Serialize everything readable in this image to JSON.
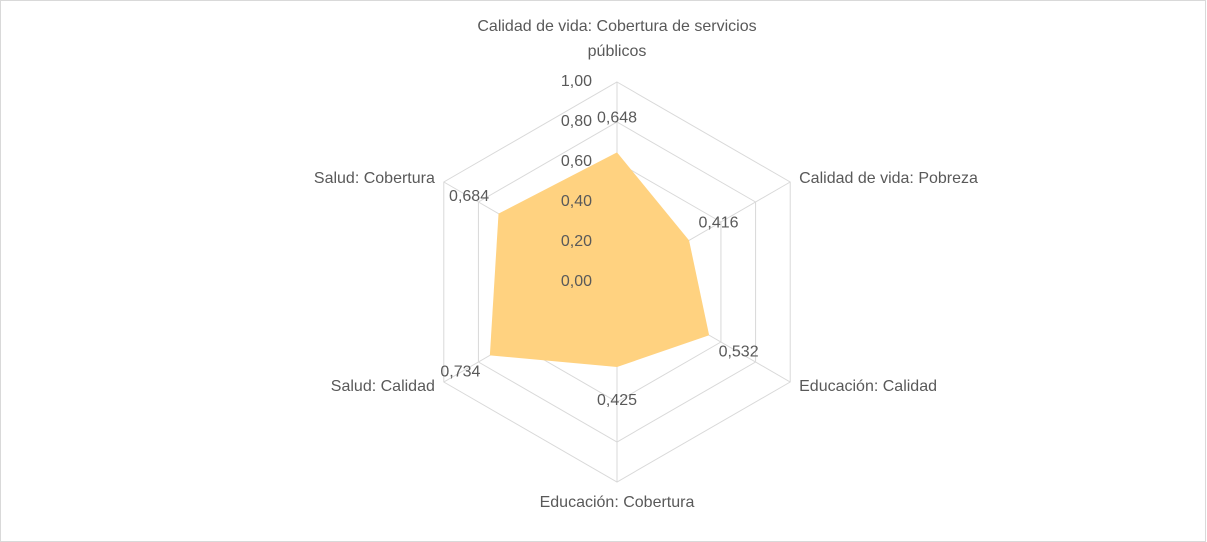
{
  "chart_data": {
    "type": "radar",
    "categories": [
      "Calidad de vida: Cobertura de servicios públicos",
      "Calidad de vida: Pobreza",
      "Educación: Calidad",
      "Educación: Cobertura",
      "Salud: Calidad",
      "Salud: Cobertura"
    ],
    "values": [
      0.648,
      0.416,
      0.532,
      0.425,
      0.734,
      0.684
    ],
    "value_labels": [
      "0,648",
      "0,416",
      "0,532",
      "0,425",
      "0,734",
      "0,684"
    ],
    "color": "#ffd280",
    "ylim": [
      0,
      1
    ],
    "yticks": [
      {
        "value": 0,
        "label": "0,00"
      },
      {
        "value": 0.2,
        "label": "0,20"
      },
      {
        "value": 0.4,
        "label": "0,40"
      },
      {
        "value": 0.6,
        "label": "0,60"
      },
      {
        "value": 0.8,
        "label": "0,80"
      },
      {
        "value": 1,
        "label": "1,00"
      }
    ],
    "grid": true
  }
}
